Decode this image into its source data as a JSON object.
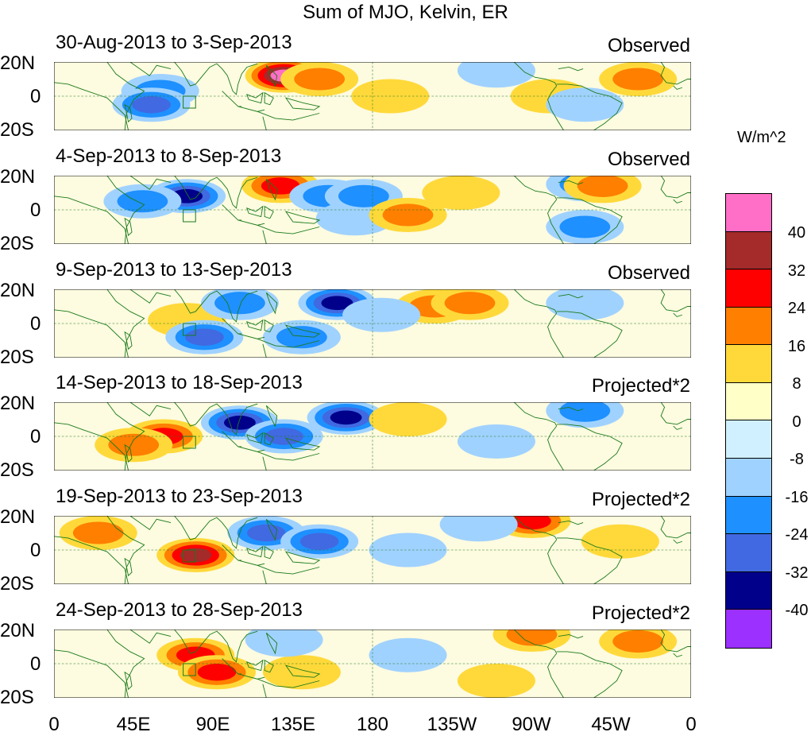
{
  "figure": {
    "title": "Sum of MJO, Kelvin, ER",
    "units": "W/m^2"
  },
  "panels": [
    {
      "date_range": "30-Aug-2013 to 3-Sep-2013",
      "kind": "Observed"
    },
    {
      "date_range": "4-Sep-2013 to 8-Sep-2013",
      "kind": "Observed"
    },
    {
      "date_range": "9-Sep-2013 to 13-Sep-2013",
      "kind": "Observed"
    },
    {
      "date_range": "14-Sep-2013 to 18-Sep-2013",
      "kind": "Projected*2"
    },
    {
      "date_range": "19-Sep-2013 to 23-Sep-2013",
      "kind": "Projected*2"
    },
    {
      "date_range": "24-Sep-2013 to 28-Sep-2013",
      "kind": "Projected*2"
    }
  ],
  "lat_labels": [
    "20N",
    "0",
    "20S"
  ],
  "lon_labels": [
    "0",
    "45E",
    "90E",
    "135E",
    "180",
    "135W",
    "90W",
    "45W",
    "0"
  ],
  "colorbar": {
    "labels": [
      "40",
      "32",
      "24",
      "16",
      "8",
      "0",
      "-8",
      "-16",
      "-24",
      "-32",
      "-40"
    ],
    "colors": [
      "#ff6ec7",
      "#a52a2a",
      "#ff0000",
      "#ff7f00",
      "#ffd93a",
      "#ffffc8",
      "#d0f0ff",
      "#a0d2ff",
      "#1e90ff",
      "#4169e1",
      "#00008b",
      "#9b30ff"
    ]
  },
  "chart_data": {
    "type": "heatmap",
    "title": "Sum of MJO, Kelvin, ER",
    "units": "W/m^2",
    "lat_range": [
      "20S",
      "20N"
    ],
    "lon_range": [
      "0",
      "0"
    ],
    "levels": [
      40,
      32,
      24,
      16,
      8,
      0,
      -8,
      -16,
      -24,
      -32,
      -40
    ],
    "panels": [
      {
        "label": "30-Aug-2013 to 3-Sep-2013",
        "kind": "Observed",
        "anomalies": [
          {
            "lon": 130,
            "lat": 12,
            "value": 44
          },
          {
            "lon": 150,
            "lat": 10,
            "value": 20
          },
          {
            "lon": 60,
            "lat": 3,
            "value": -20
          },
          {
            "lon": 55,
            "lat": -5,
            "value": -24
          },
          {
            "lon": 190,
            "lat": 0,
            "value": 12
          },
          {
            "lon": 280,
            "lat": 0,
            "value": 10
          },
          {
            "lon": 300,
            "lat": -5,
            "value": -12
          },
          {
            "lon": 250,
            "lat": 15,
            "value": -14
          },
          {
            "lon": 330,
            "lat": 10,
            "value": 18
          }
        ]
      },
      {
        "label": "4-Sep-2013 to 8-Sep-2013",
        "kind": "Observed",
        "anomalies": [
          {
            "lon": 75,
            "lat": 8,
            "value": -36
          },
          {
            "lon": 50,
            "lat": 5,
            "value": -20
          },
          {
            "lon": 128,
            "lat": 14,
            "value": 30
          },
          {
            "lon": 155,
            "lat": 8,
            "value": -20
          },
          {
            "lon": 170,
            "lat": -5,
            "value": -14
          },
          {
            "lon": 175,
            "lat": 8,
            "value": -20
          },
          {
            "lon": 200,
            "lat": -3,
            "value": 18
          },
          {
            "lon": 230,
            "lat": 10,
            "value": 12
          },
          {
            "lon": 300,
            "lat": -10,
            "value": -22
          },
          {
            "lon": 300,
            "lat": 15,
            "value": -18
          },
          {
            "lon": 310,
            "lat": 14,
            "value": 16
          }
        ]
      },
      {
        "label": "9-Sep-2013 to 13-Sep-2013",
        "kind": "Observed",
        "anomalies": [
          {
            "lon": 160,
            "lat": 12,
            "value": -38
          },
          {
            "lon": 75,
            "lat": 2,
            "value": 14
          },
          {
            "lon": 85,
            "lat": -8,
            "value": -26
          },
          {
            "lon": 105,
            "lat": 12,
            "value": -20
          },
          {
            "lon": 215,
            "lat": 10,
            "value": 18
          },
          {
            "lon": 235,
            "lat": 12,
            "value": 18
          },
          {
            "lon": 140,
            "lat": -8,
            "value": -16
          },
          {
            "lon": 185,
            "lat": 5,
            "value": -12
          },
          {
            "lon": 300,
            "lat": 12,
            "value": -12
          }
        ]
      },
      {
        "label": "14-Sep-2013 to 18-Sep-2013",
        "kind": "Projected*2",
        "anomalies": [
          {
            "lon": 105,
            "lat": 8,
            "value": -38
          },
          {
            "lon": 165,
            "lat": 11,
            "value": -38
          },
          {
            "lon": 62,
            "lat": 0,
            "value": 28
          },
          {
            "lon": 45,
            "lat": -5,
            "value": 16
          },
          {
            "lon": 130,
            "lat": 0,
            "value": -26
          },
          {
            "lon": 200,
            "lat": 10,
            "value": 10
          },
          {
            "lon": 300,
            "lat": 15,
            "value": -18
          },
          {
            "lon": 250,
            "lat": -3,
            "value": -12
          }
        ]
      },
      {
        "label": "19-Sep-2013 to 23-Sep-2013",
        "kind": "Projected*2",
        "anomalies": [
          {
            "lon": 80,
            "lat": -3,
            "value": 34
          },
          {
            "lon": 25,
            "lat": 10,
            "value": 20
          },
          {
            "lon": 120,
            "lat": 10,
            "value": -24
          },
          {
            "lon": 150,
            "lat": 5,
            "value": -24
          },
          {
            "lon": 200,
            "lat": 0,
            "value": -12
          },
          {
            "lon": 270,
            "lat": 17,
            "value": 26
          },
          {
            "lon": 320,
            "lat": 5,
            "value": 14
          },
          {
            "lon": 240,
            "lat": 15,
            "value": -12
          }
        ]
      },
      {
        "label": "24-Sep-2013 to 28-Sep-2013",
        "kind": "Projected*2",
        "anomalies": [
          {
            "lon": 80,
            "lat": 5,
            "value": 28
          },
          {
            "lon": 92,
            "lat": -5,
            "value": 30
          },
          {
            "lon": 140,
            "lat": -5,
            "value": 14
          },
          {
            "lon": 130,
            "lat": 14,
            "value": -12
          },
          {
            "lon": 200,
            "lat": 5,
            "value": -12
          },
          {
            "lon": 270,
            "lat": 17,
            "value": 20
          },
          {
            "lon": 330,
            "lat": 13,
            "value": 22
          },
          {
            "lon": 250,
            "lat": -10,
            "value": 10
          }
        ]
      }
    ]
  }
}
